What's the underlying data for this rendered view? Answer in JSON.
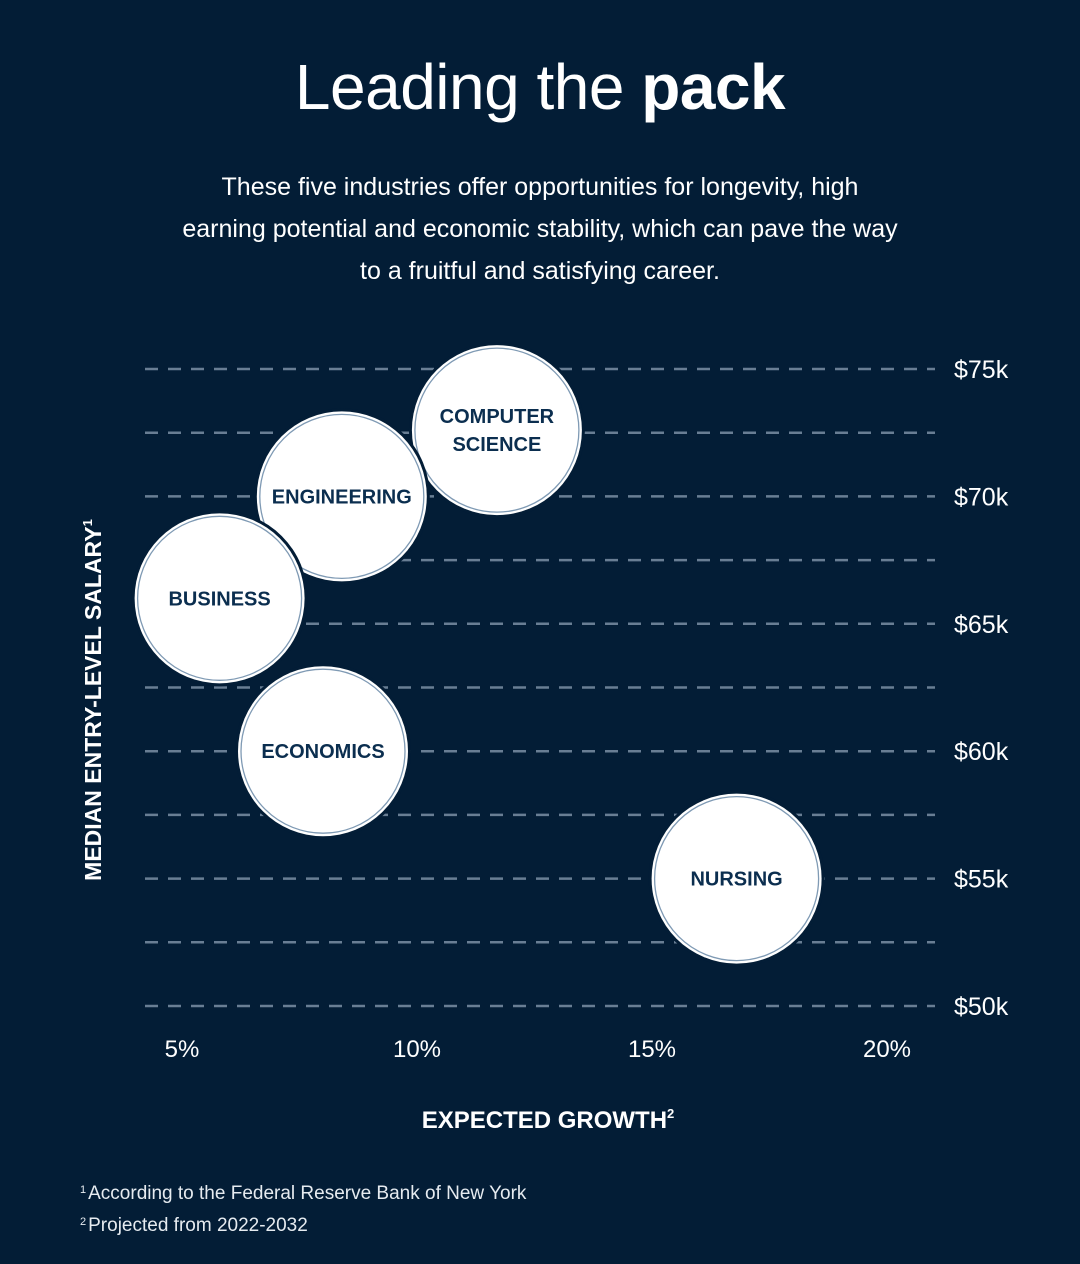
{
  "title_regular": "Leading the ",
  "title_bold": "pack",
  "subtitle": "These five industries offer opportunities for longevity, high earning potential and economic stability, which can pave the way to a fruitful and satisfying career.",
  "colors": {
    "background": "#031d36",
    "bubble_fill": "#ffffff",
    "bubble_text": "#0b2e4f",
    "bubble_ring": "#7f9ab4",
    "gridline": "#7b8fa5",
    "text": "#ffffff"
  },
  "chart_data": {
    "type": "scatter",
    "title": "Leading the pack",
    "xlabel": "EXPECTED GROWTH",
    "xlabel_sup": "2",
    "ylabel": "MEDIAN ENTRY-LEVEL SALARY",
    "ylabel_sup": "1",
    "xlim": [
      4.2,
      21.2
    ],
    "ylim": [
      50,
      75
    ],
    "x_ticks": [
      5,
      10,
      15,
      20
    ],
    "x_tick_labels": [
      "5%",
      "10%",
      "15%",
      "20%"
    ],
    "y_ticks": [
      50,
      55,
      60,
      65,
      70,
      75
    ],
    "y_tick_labels": [
      "$50k",
      "$55k",
      "$60k",
      "$65k",
      "$70k",
      "$75k"
    ],
    "y_gridlines": [
      50,
      52.5,
      55,
      57.5,
      60,
      62.5,
      65,
      67.5,
      70,
      72.5,
      75
    ],
    "grid": "dashed horizontal",
    "points": [
      {
        "label": [
          "COMPUTER",
          "SCIENCE"
        ],
        "x": 11.7,
        "y": 72.6
      },
      {
        "label": [
          "ENGINEERING"
        ],
        "x": 8.4,
        "y": 70.0
      },
      {
        "label": [
          "BUSINESS"
        ],
        "x": 5.8,
        "y": 66.0
      },
      {
        "label": [
          "ECONOMICS"
        ],
        "x": 8.0,
        "y": 60.0
      },
      {
        "label": [
          "NURSING"
        ],
        "x": 16.8,
        "y": 55.0
      }
    ]
  },
  "footnotes": [
    {
      "mark": "1",
      "text": "According to the Federal Reserve Bank of New York"
    },
    {
      "mark": "2",
      "text": "Projected from 2022-2032"
    }
  ]
}
